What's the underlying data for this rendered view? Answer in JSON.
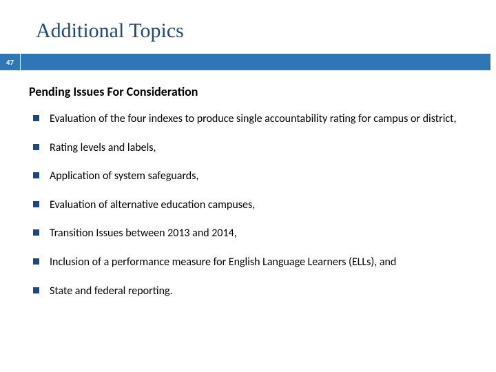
{
  "colors": {
    "title_color": "#1f497d",
    "bar_color": "#2f76b7",
    "bullet_color": "#1f497d",
    "text_color": "#000000",
    "background": "#ffffff"
  },
  "typography": {
    "title_font": "Georgia, serif",
    "title_fontsize": 30,
    "body_font": "Calibri, sans-serif",
    "subtitle_fontsize": 18,
    "body_fontsize": 16
  },
  "slide": {
    "title": "Additional Topics",
    "page_number": "47",
    "subtitle": "Pending Issues For Consideration",
    "bullets": [
      "Evaluation of the four indexes to produce single accountability rating for campus or district,",
      "Rating levels and labels,",
      "Application of system safeguards,",
      "Evaluation of alternative education campuses,",
      "Transition Issues between 2013 and 2014,",
      "Inclusion of a performance measure for English Language Learners (ELLs), and",
      "State and federal reporting."
    ]
  }
}
